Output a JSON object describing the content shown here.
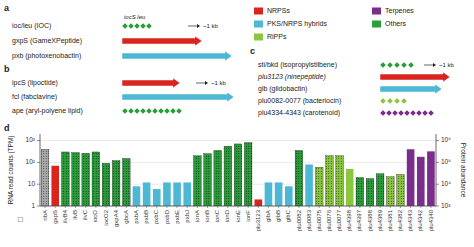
{
  "chart_data": {
    "type": "bar",
    "categories": [
      "ribA",
      "gxpS",
      "ilvB4",
      "ilvB",
      "ilvC",
      "iocO",
      "iocO2",
      "gxpA4",
      "gbcA",
      "pxbA",
      "pxbB",
      "pxbC",
      "pxbD",
      "pxbE",
      "pxbJ",
      "ionA",
      "ionB",
      "ionC",
      "ionD",
      "ionE",
      "ionF",
      "plu3123",
      "glbA",
      "glbB",
      "glbC",
      "plu0082",
      "plu0083",
      "plu0075",
      "plu0076",
      "plu0077",
      "plu4398",
      "plu4397",
      "plu4388",
      "plu4389",
      "plu4381",
      "plu4382",
      "plu4343",
      "plu4342",
      "plu4340"
    ],
    "values": [
      400,
      70,
      300,
      280,
      260,
      300,
      90,
      120,
      150,
      8,
      12,
      6,
      12,
      12,
      12,
      200,
      250,
      350,
      550,
      700,
      800,
      2,
      12,
      12,
      8,
      350,
      80,
      60,
      200,
      200,
      50,
      20,
      18,
      30,
      22,
      28,
      400,
      180,
      320
    ],
    "colors": [
      "#aaaaaa",
      "#d9251d",
      "#2a9e3a",
      "#2a9e3a",
      "#2a9e3a",
      "#2a9e3a",
      "#2a9e3a",
      "#2a9e3a",
      "#2a9e3a",
      "#4db8d4",
      "#4db8d4",
      "#4db8d4",
      "#4db8d4",
      "#4db8d4",
      "#4db8d4",
      "#2a9e3a",
      "#2a9e3a",
      "#2a9e3a",
      "#2a9e3a",
      "#2a9e3a",
      "#2a9e3a",
      "#d9251d",
      "#4db8d4",
      "#4db8d4",
      "#4db8d4",
      "#2a9e3a",
      "#4db8d4",
      "#8cc63f",
      "#8cc63f",
      "#8cc63f",
      "#8cc63f",
      "#2a9e3a",
      "#2a9e3a",
      "#2a9e3a",
      "#8cc63f",
      "#8cc63f",
      "#7b2d8b",
      "#7b2d8b",
      "#7b2d8b"
    ],
    "hatched": [
      true,
      false,
      true,
      true,
      true,
      true,
      true,
      true,
      true,
      false,
      false,
      false,
      false,
      false,
      false,
      true,
      true,
      true,
      true,
      true,
      true,
      false,
      false,
      false,
      false,
      true,
      false,
      true,
      true,
      true,
      false,
      true,
      true,
      true,
      true,
      true,
      false,
      false,
      false
    ],
    "log": "y",
    "grid": true,
    "y_label": "RNA read counts (TPM)",
    "ylim": [
      1,
      2000
    ],
    "yticks": [
      1,
      10,
      {
        "value": 100,
        "label": "10²"
      },
      {
        "value": 1000,
        "label": "10³"
      }
    ],
    "y2_label": "Protein abundance",
    "y2lim": [
      1000,
      2000000
    ],
    "y2ticks": [
      {
        "value": 1000,
        "label": "10³"
      },
      {
        "value": 10000,
        "label": "10⁴"
      },
      {
        "value": 100000,
        "label": "10⁵"
      },
      {
        "value": 1000000,
        "label": "10⁶"
      }
    ],
    "annotations": [
      {
        "text": "a"
      },
      {
        "text": "ioc/leu (IOC)",
        "color": "#2a9e3a"
      },
      {
        "text": "iocS leu"
      },
      {
        "text": "~1 kb"
      },
      {
        "text": "gxpS (GameXPeptide)",
        "color": "#d9251d"
      },
      {
        "text": "pxb (photoxenobactin)",
        "color": "#4db8d4"
      },
      {
        "text": "b"
      },
      {
        "text": "ipcS (lipoctide)",
        "color": "#d9251d"
      },
      {
        "text": "~1 kb"
      },
      {
        "text": "fcl (fabclavine)",
        "color": "#4db8d4"
      },
      {
        "text": "ape (aryl-polyene lipid)",
        "color": "#2a9e3a"
      },
      {
        "text": "NRPSs",
        "color": "#d9251d"
      },
      {
        "text": "PKS/NRPS hybrids",
        "color": "#4db8d4"
      },
      {
        "text": "RiPPs",
        "color": "#8cc63f"
      },
      {
        "text": "Terpenes",
        "color": "#7b2d8b"
      },
      {
        "text": "Others",
        "color": "#2a9e3a"
      },
      {
        "text": "c"
      },
      {
        "text": "sti/bkd (isopropylstilbene)",
        "color": "#2a9e3a"
      },
      {
        "text": "~1 kb"
      },
      {
        "text": "plu3123 (ninepeptide)",
        "color": "#d9251d"
      },
      {
        "text": "glb (glidobactin)",
        "color": "#4db8d4"
      },
      {
        "text": "plu0082-0077 (bacteriocin)",
        "color": "#8cc63f"
      },
      {
        "text": "plu4334-4343 (carotenoid)",
        "color": "#7b2d8b"
      },
      {
        "text": "d"
      },
      {
        "text": "□"
      }
    ]
  }
}
